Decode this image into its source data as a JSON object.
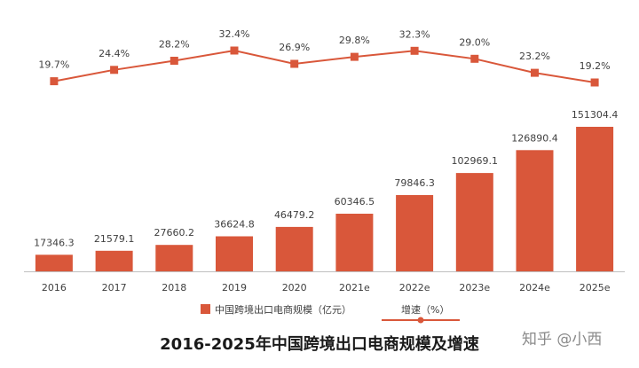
{
  "chart_data": {
    "type": "bar",
    "categories": [
      "2016",
      "2017",
      "2018",
      "2019",
      "2020",
      "2021e",
      "2022e",
      "2023e",
      "2024e",
      "2025e"
    ],
    "series": [
      {
        "name": "中国跨境出口电商规模（亿元）",
        "type": "bar",
        "values": [
          17346.3,
          21579.1,
          27660.2,
          36624.8,
          46479.2,
          60346.5,
          79846.3,
          102969.1,
          126890.4,
          151304.4
        ],
        "labels": [
          "17346.3",
          "21579.1",
          "27660.2",
          "36624.8",
          "46479.2",
          "60346.5",
          "79846.3",
          "102969.1",
          "126890.4",
          "151304.4"
        ],
        "color": "#d9573a"
      },
      {
        "name": "增速（%）",
        "type": "line",
        "values": [
          19.7,
          24.4,
          28.2,
          32.4,
          26.9,
          29.8,
          32.3,
          29.0,
          23.2,
          19.2
        ],
        "labels": [
          "19.7%",
          "24.4%",
          "28.2%",
          "32.4%",
          "26.9%",
          "29.8%",
          "32.3%",
          "29.0%",
          "23.2%",
          "19.2%"
        ],
        "color": "#d9573a"
      }
    ],
    "legend_position": "bottom",
    "grid": false
  },
  "legend": {
    "bar_label": "中国跨境出口电商规模（亿元）",
    "line_label": "增速（%）"
  },
  "title": "2016-2025年中国跨境出口电商规模及增速",
  "watermark": "知乎 @小西"
}
